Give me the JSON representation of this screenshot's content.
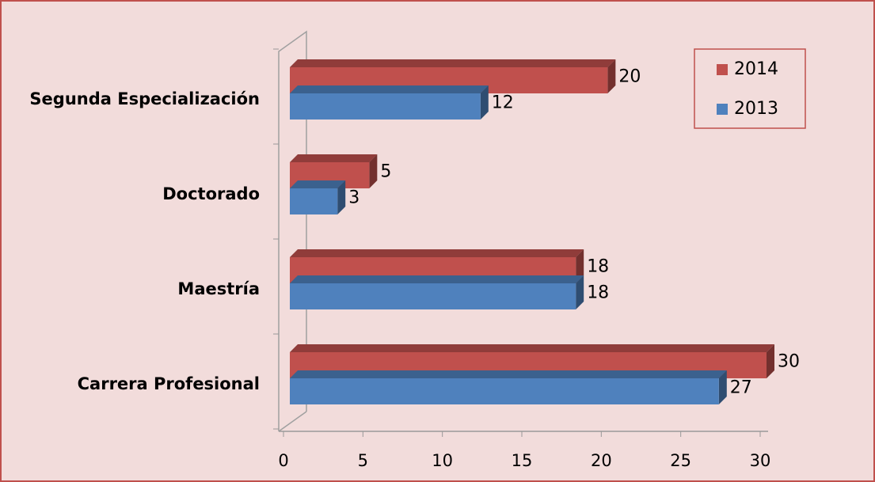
{
  "chart_data": {
    "type": "bar",
    "orientation": "horizontal",
    "categories": [
      "Carrera Profesional",
      "Maestría",
      "Doctorado",
      "Segunda Especialización"
    ],
    "series": [
      {
        "name": "2014",
        "color": "#c0504d",
        "values": [
          30,
          18,
          5,
          20
        ]
      },
      {
        "name": "2013",
        "color": "#4f81bd",
        "values": [
          27,
          18,
          3,
          12
        ]
      }
    ],
    "xlim": [
      0,
      30
    ],
    "xticks": [
      0,
      5,
      10,
      15,
      20,
      25,
      30
    ],
    "legend": "top-right",
    "grid": false
  }
}
